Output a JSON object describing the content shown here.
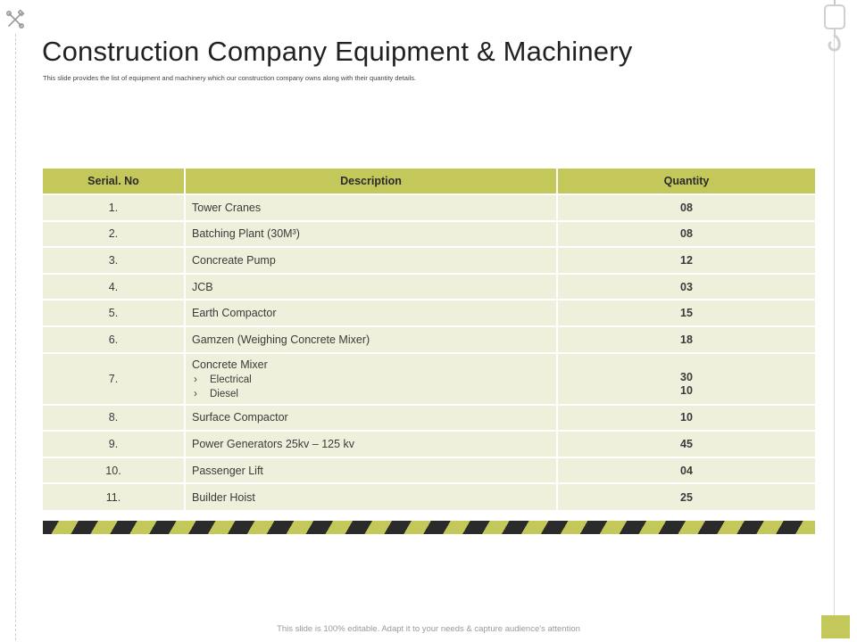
{
  "title": "Construction Company Equipment & Machinery",
  "subtitle": "This slide provides the list of equipment and machinery which our construction company owns along with their quantity details.",
  "table": {
    "headers": {
      "serial": "Serial. No",
      "description": "Description",
      "quantity": "Quantity"
    },
    "rows": [
      {
        "serial": "1.",
        "description": "Tower Cranes",
        "quantity": "08"
      },
      {
        "serial": "2.",
        "description": "Batching Plant (30M³)",
        "quantity": "08"
      },
      {
        "serial": "3.",
        "description": "Concreate Pump",
        "quantity": "12"
      },
      {
        "serial": "4.",
        "description": "JCB",
        "quantity": "03"
      },
      {
        "serial": "5.",
        "description": "Earth Compactor",
        "quantity": "15"
      },
      {
        "serial": "6.",
        "description": "Gamzen (Weighing Concrete Mixer)",
        "quantity": "18"
      },
      {
        "serial": "7.",
        "description": "Concrete Mixer",
        "sub_items": [
          {
            "bullet": "›",
            "label": "Electrical",
            "quantity": "30"
          },
          {
            "bullet": "›",
            "label": "Diesel",
            "quantity": "10"
          }
        ]
      },
      {
        "serial": "8.",
        "description": "Surface Compactor",
        "quantity": "10"
      },
      {
        "serial": "9.",
        "description": "Power Generators 25kv – 125 kv",
        "quantity": "45"
      },
      {
        "serial": "10.",
        "description": "Passenger Lift",
        "quantity": "04"
      },
      {
        "serial": "11.",
        "description": "Builder Hoist",
        "quantity": "25"
      }
    ]
  },
  "footer": "This slide is 100% editable. Adapt it to your needs & capture audience's attention",
  "colors": {
    "accent": "#c4c85b",
    "row_bg": "#eff0dc",
    "stripe_dark": "#2b2b2b"
  },
  "icons": {
    "left": "tools-icon",
    "right": "crane-hook-icon"
  }
}
